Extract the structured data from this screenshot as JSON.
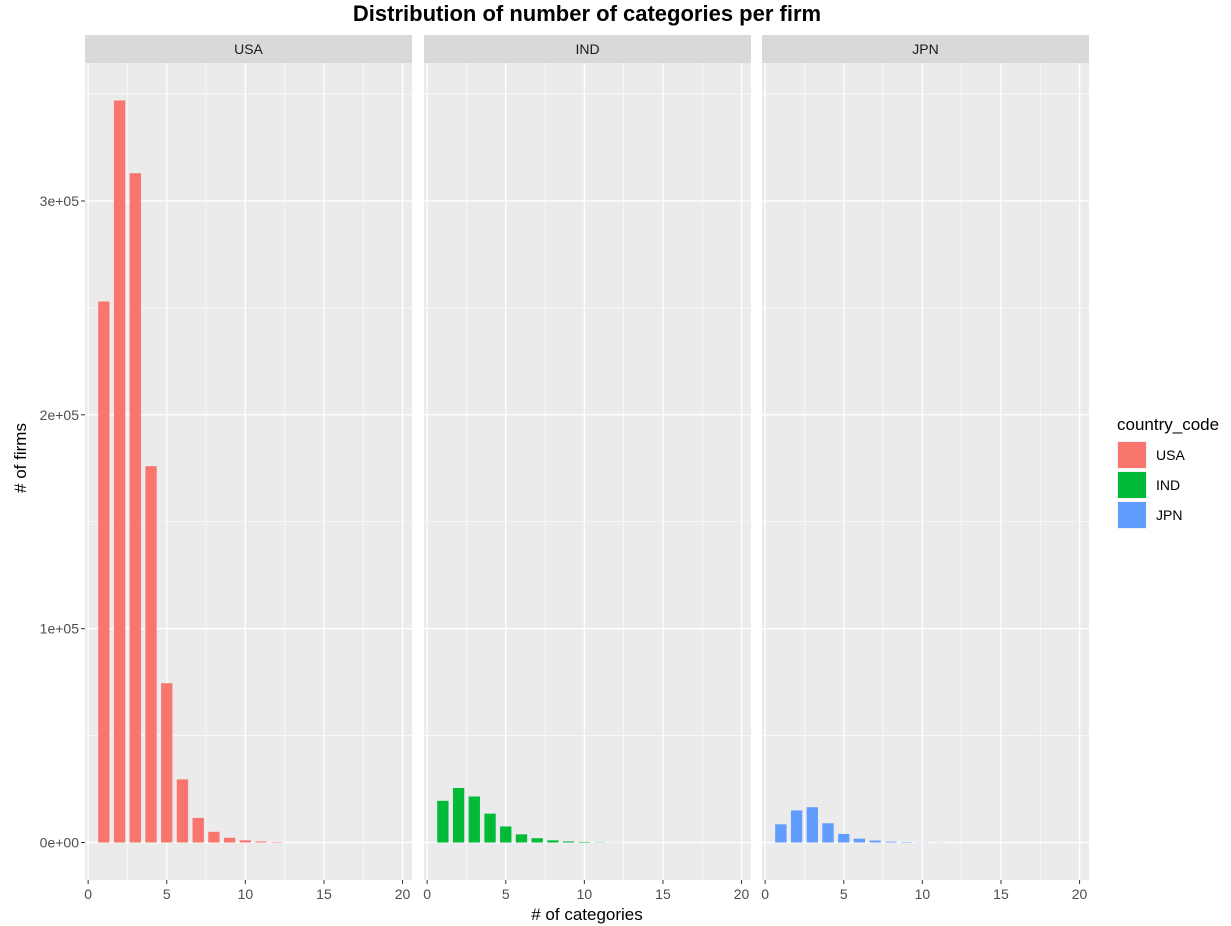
{
  "chart_data": {
    "type": "bar",
    "title": "Distribution of number of categories per firm",
    "xlabel": "# of categories",
    "ylabel": "# of firms",
    "xlim": [
      0,
      20
    ],
    "ylim": [
      0,
      350000
    ],
    "x_ticks": [
      0,
      5,
      10,
      15,
      20
    ],
    "x_tick_labels": [
      "0",
      "5",
      "10",
      "15",
      "20"
    ],
    "y_ticks": [
      0,
      100000,
      200000,
      300000
    ],
    "y_tick_labels": [
      "0e+00",
      "1e+05",
      "2e+05",
      "3e+05"
    ],
    "grid": true,
    "legend": {
      "title": "country_code",
      "placement": "right"
    },
    "x": [
      1,
      2,
      3,
      4,
      5,
      6,
      7,
      8,
      9,
      10,
      11,
      12
    ],
    "series": [
      {
        "name": "USA",
        "color": "#F8766D",
        "values": [
          253000,
          347000,
          313000,
          176000,
          74500,
          29500,
          11500,
          5000,
          2200,
          1000,
          500,
          200
        ]
      },
      {
        "name": "IND",
        "color": "#00BA38",
        "values": [
          19500,
          25500,
          21500,
          13500,
          7500,
          3800,
          2000,
          1000,
          500,
          250,
          120,
          50
        ]
      },
      {
        "name": "JPN",
        "color": "#619CFF",
        "values": [
          8500,
          15000,
          16500,
          9000,
          4000,
          1800,
          900,
          400,
          200,
          100,
          50,
          20
        ]
      }
    ]
  }
}
